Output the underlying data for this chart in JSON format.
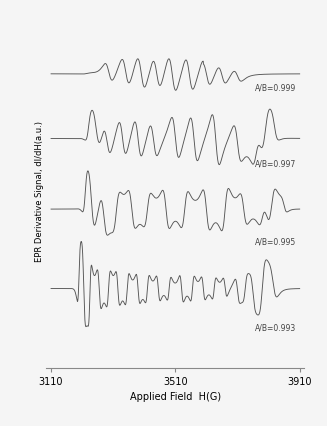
{
  "x_min": 3110,
  "x_max": 3910,
  "x_ticks": [
    3110,
    3510,
    3910
  ],
  "xlabel": "Applied Field  H(G)",
  "ylabel": "EPR Derivative Signal, dI/dH(a.u.)",
  "labels": [
    "A/B=0.999",
    "A/B=0.997",
    "A/B=0.995",
    "A/B=0.993"
  ],
  "offsets": [
    3.2,
    2.1,
    0.9,
    -0.45
  ],
  "scales": [
    0.28,
    0.5,
    0.65,
    0.8
  ],
  "background_color": "#f5f5f5",
  "line_color": "#555555"
}
